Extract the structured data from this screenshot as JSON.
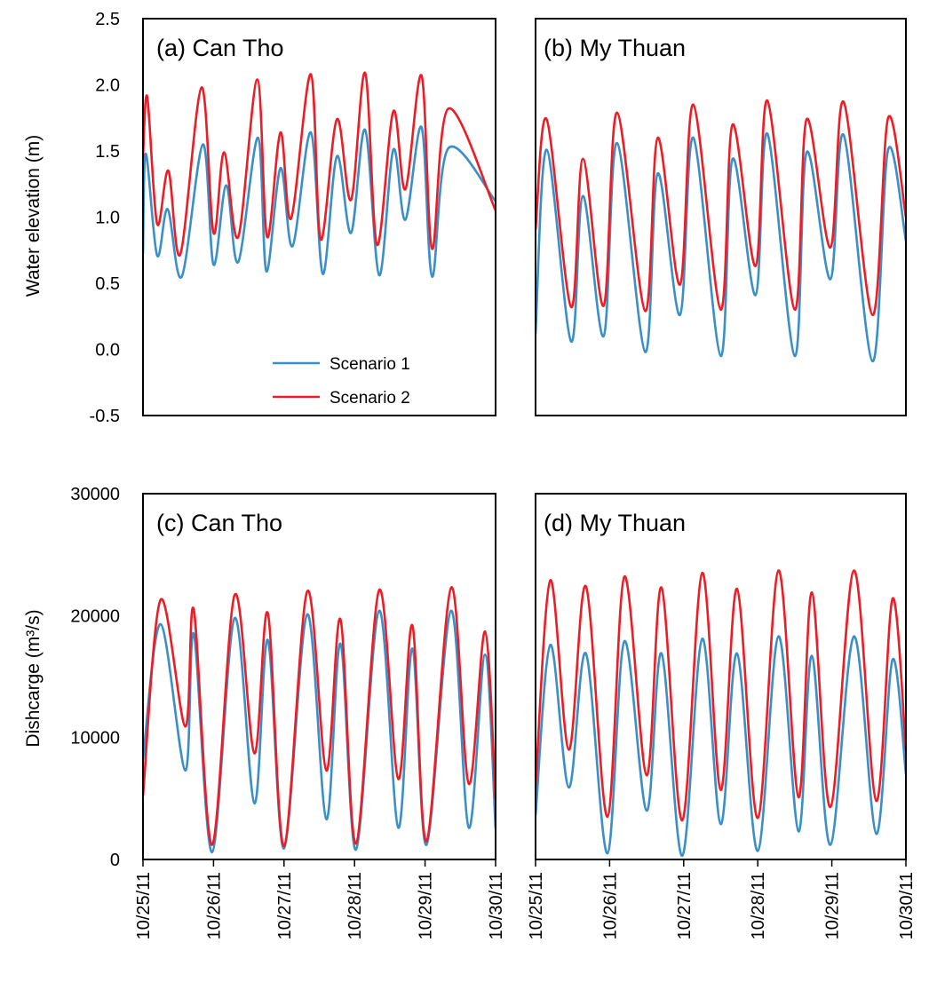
{
  "colors": {
    "scenario1": "#3A8FC8",
    "scenario2": "#EE1C24",
    "frame": "#000000"
  },
  "legend": {
    "placement": "bottom-right of panel (a)",
    "items": [
      "Scenario 1",
      "Scenario 2"
    ]
  },
  "chart_data": [
    {
      "type": "line",
      "panel": "a",
      "title": "(a) Can Tho",
      "ylabel": "Water elevation (m)",
      "xlabel": "",
      "x_ticks": [
        "10/25/11",
        "10/26/11",
        "10/27/11",
        "10/28/11",
        "10/29/11",
        "10/30/11"
      ],
      "y_ticks": [
        "-0.5",
        "0.0",
        "0.5",
        "1.0",
        "1.5",
        "2.0",
        "2.5"
      ],
      "ylim": [
        -0.5,
        2.5
      ],
      "xlim_days": [
        0,
        5
      ],
      "grid": false,
      "series": [
        {
          "name": "Scenario 1",
          "points": [
            [
              0,
              0.72
            ],
            [
              0.04,
              1.48
            ],
            [
              0.2,
              0.71
            ],
            [
              0.35,
              1.06
            ],
            [
              0.55,
              0.55
            ],
            [
              0.85,
              1.55
            ],
            [
              1.0,
              0.64
            ],
            [
              1.18,
              1.24
            ],
            [
              1.35,
              0.66
            ],
            [
              1.63,
              1.6
            ],
            [
              1.75,
              0.59
            ],
            [
              1.95,
              1.37
            ],
            [
              2.12,
              0.78
            ],
            [
              2.38,
              1.64
            ],
            [
              2.55,
              0.57
            ],
            [
              2.75,
              1.46
            ],
            [
              2.95,
              0.88
            ],
            [
              3.15,
              1.66
            ],
            [
              3.35,
              0.56
            ],
            [
              3.55,
              1.51
            ],
            [
              3.72,
              0.98
            ],
            [
              3.95,
              1.68
            ],
            [
              4.1,
              0.55
            ],
            [
              4.33,
              1.52
            ],
            [
              5.0,
              1.12
            ]
          ]
        },
        {
          "name": "Scenario 2",
          "points": [
            [
              0,
              1.45
            ],
            [
              0.06,
              1.91
            ],
            [
              0.2,
              0.95
            ],
            [
              0.36,
              1.35
            ],
            [
              0.53,
              0.72
            ],
            [
              0.83,
              1.98
            ],
            [
              1.0,
              0.88
            ],
            [
              1.15,
              1.49
            ],
            [
              1.35,
              0.85
            ],
            [
              1.62,
              2.04
            ],
            [
              1.76,
              0.85
            ],
            [
              1.95,
              1.64
            ],
            [
              2.1,
              0.99
            ],
            [
              2.38,
              2.08
            ],
            [
              2.52,
              0.83
            ],
            [
              2.75,
              1.74
            ],
            [
              2.95,
              1.13
            ],
            [
              3.15,
              2.09
            ],
            [
              3.32,
              0.79
            ],
            [
              3.55,
              1.8
            ],
            [
              3.72,
              1.21
            ],
            [
              3.95,
              2.07
            ],
            [
              4.1,
              0.76
            ],
            [
              4.33,
              1.82
            ],
            [
              5.0,
              1.05
            ]
          ]
        }
      ]
    },
    {
      "type": "line",
      "panel": "b",
      "title": "(b) My Thuan",
      "x_ticks": [
        "10/25/11",
        "10/26/11",
        "10/27/11",
        "10/28/11",
        "10/29/11",
        "10/30/11"
      ],
      "ylim": [
        -0.5,
        2.5
      ],
      "xlim_days": [
        0,
        5
      ],
      "grid": false,
      "series": [
        {
          "name": "Scenario 1",
          "points": [
            [
              0,
              0.12
            ],
            [
              0.15,
              1.51
            ],
            [
              0.48,
              0.06
            ],
            [
              0.64,
              1.16
            ],
            [
              0.92,
              0.1
            ],
            [
              1.1,
              1.56
            ],
            [
              1.48,
              -0.02
            ],
            [
              1.65,
              1.33
            ],
            [
              1.95,
              0.26
            ],
            [
              2.13,
              1.6
            ],
            [
              2.5,
              -0.05
            ],
            [
              2.66,
              1.44
            ],
            [
              2.97,
              0.41
            ],
            [
              3.13,
              1.63
            ],
            [
              3.5,
              -0.05
            ],
            [
              3.66,
              1.49
            ],
            [
              3.98,
              0.53
            ],
            [
              4.16,
              1.62
            ],
            [
              4.55,
              -0.09
            ],
            [
              4.76,
              1.51
            ],
            [
              5.0,
              0.82
            ]
          ]
        },
        {
          "name": "Scenario 2",
          "points": [
            [
              0,
              0.9
            ],
            [
              0.15,
              1.74
            ],
            [
              0.48,
              0.32
            ],
            [
              0.64,
              1.44
            ],
            [
              0.92,
              0.33
            ],
            [
              1.1,
              1.79
            ],
            [
              1.48,
              0.29
            ],
            [
              1.65,
              1.6
            ],
            [
              1.95,
              0.49
            ],
            [
              2.13,
              1.85
            ],
            [
              2.5,
              0.3
            ],
            [
              2.66,
              1.7
            ],
            [
              2.97,
              0.63
            ],
            [
              3.13,
              1.88
            ],
            [
              3.5,
              0.3
            ],
            [
              3.66,
              1.74
            ],
            [
              3.98,
              0.77
            ],
            [
              4.16,
              1.87
            ],
            [
              4.55,
              0.26
            ],
            [
              4.76,
              1.75
            ],
            [
              5.0,
              1.0
            ]
          ]
        }
      ]
    },
    {
      "type": "line",
      "panel": "c",
      "title": "(c) Can Tho",
      "ylabel": "Dishcarge (m³/s)",
      "xlabel": "",
      "x_ticks": [
        "10/25/11",
        "10/26/11",
        "10/27/11",
        "10/28/11",
        "10/29/11",
        "10/30/11"
      ],
      "y_ticks": [
        "0",
        "10000",
        "20000",
        "30000"
      ],
      "ylim": [
        0,
        30000
      ],
      "xlim_days": [
        0,
        5
      ],
      "grid": false,
      "series": [
        {
          "name": "Scenario 1",
          "points": [
            [
              0,
              8200
            ],
            [
              0.25,
              19300
            ],
            [
              0.6,
              7300
            ],
            [
              0.72,
              18500
            ],
            [
              0.98,
              600
            ],
            [
              1.3,
              19800
            ],
            [
              1.58,
              4600
            ],
            [
              1.77,
              18000
            ],
            [
              2.0,
              900
            ],
            [
              2.33,
              20100
            ],
            [
              2.6,
              3300
            ],
            [
              2.8,
              17700
            ],
            [
              3.02,
              800
            ],
            [
              3.35,
              20400
            ],
            [
              3.62,
              2600
            ],
            [
              3.82,
              17300
            ],
            [
              4.02,
              1200
            ],
            [
              4.37,
              20400
            ],
            [
              4.62,
              2600
            ],
            [
              4.85,
              16800
            ],
            [
              5.0,
              2500
            ]
          ]
        },
        {
          "name": "Scenario 2",
          "points": [
            [
              0,
              5200
            ],
            [
              0.25,
              21300
            ],
            [
              0.6,
              10900
            ],
            [
              0.72,
              20500
            ],
            [
              0.98,
              1200
            ],
            [
              1.3,
              21700
            ],
            [
              1.58,
              8700
            ],
            [
              1.77,
              20200
            ],
            [
              2.0,
              1100
            ],
            [
              2.33,
              22000
            ],
            [
              2.6,
              7300
            ],
            [
              2.8,
              19700
            ],
            [
              3.02,
              1300
            ],
            [
              3.35,
              22100
            ],
            [
              3.62,
              6600
            ],
            [
              3.82,
              19200
            ],
            [
              4.02,
              1500
            ],
            [
              4.37,
              22300
            ],
            [
              4.62,
              6200
            ],
            [
              4.85,
              18700
            ],
            [
              5.0,
              5000
            ]
          ]
        }
      ]
    },
    {
      "type": "line",
      "panel": "d",
      "title": "(d) My Thuan",
      "x_ticks": [
        "10/25/11",
        "10/26/11",
        "10/27/11",
        "10/28/11",
        "10/29/11",
        "10/30/11"
      ],
      "ylim": [
        0,
        30000
      ],
      "xlim_days": [
        0,
        5
      ],
      "grid": false,
      "series": [
        {
          "name": "Scenario 1",
          "points": [
            [
              0,
              3600
            ],
            [
              0.2,
              17600
            ],
            [
              0.45,
              5900
            ],
            [
              0.68,
              16900
            ],
            [
              0.97,
              500
            ],
            [
              1.2,
              17900
            ],
            [
              1.5,
              4000
            ],
            [
              1.7,
              16900
            ],
            [
              1.98,
              300
            ],
            [
              2.25,
              18100
            ],
            [
              2.5,
              2900
            ],
            [
              2.72,
              16900
            ],
            [
              3.0,
              700
            ],
            [
              3.28,
              18300
            ],
            [
              3.55,
              2300
            ],
            [
              3.73,
              16700
            ],
            [
              3.98,
              1200
            ],
            [
              4.3,
              18300
            ],
            [
              4.6,
              2100
            ],
            [
              4.82,
              16400
            ],
            [
              5.0,
              7000
            ]
          ]
        },
        {
          "name": "Scenario 2",
          "points": [
            [
              0,
              6000
            ],
            [
              0.2,
              22900
            ],
            [
              0.45,
              9000
            ],
            [
              0.68,
              22400
            ],
            [
              0.97,
              3500
            ],
            [
              1.2,
              23200
            ],
            [
              1.5,
              6900
            ],
            [
              1.7,
              22300
            ],
            [
              1.98,
              3200
            ],
            [
              2.25,
              23500
            ],
            [
              2.5,
              5700
            ],
            [
              2.72,
              22200
            ],
            [
              3.0,
              3400
            ],
            [
              3.28,
              23700
            ],
            [
              3.55,
              5100
            ],
            [
              3.73,
              21900
            ],
            [
              3.98,
              4300
            ],
            [
              4.3,
              23700
            ],
            [
              4.6,
              4800
            ],
            [
              4.82,
              21400
            ],
            [
              5.0,
              9000
            ]
          ]
        }
      ]
    }
  ]
}
